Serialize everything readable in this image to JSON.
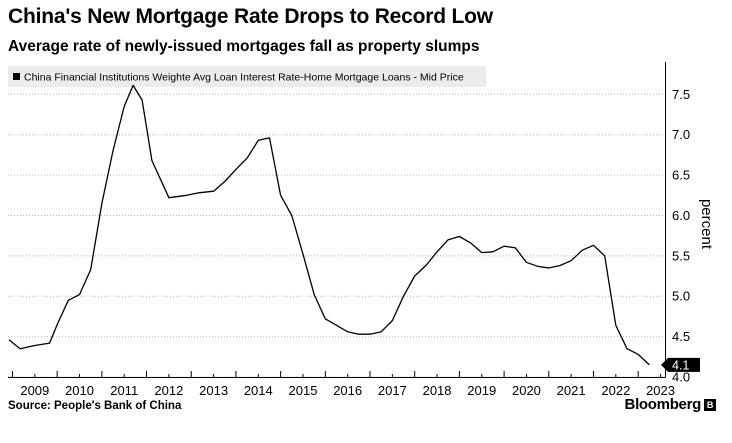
{
  "header": {
    "title": "China's New Mortgage Rate Drops to Record Low",
    "subtitle": "Average rate of newly-issued mortgages fall as property slumps"
  },
  "footer": {
    "source": "Source: People's Bank of China",
    "brand": "Bloomberg",
    "brand_icon": "bloomberg-square-icon"
  },
  "colors": {
    "line": "#000000",
    "grid": "#b4b4b4",
    "legend_bg": "#ececec",
    "label_bg": "#000000"
  },
  "chart_data": {
    "type": "line",
    "title": "China's New Mortgage Rate Drops to Record Low",
    "subtitle": "Average rate of newly-issued mortgages fall as property slumps",
    "xlabel": "",
    "ylabel": "percent",
    "xlim": [
      2008.9,
      2023.6
    ],
    "ylim": [
      4.0,
      7.9
    ],
    "x_ticks": [
      "2009",
      "2010",
      "2011",
      "2012",
      "2013",
      "2014",
      "2015",
      "2016",
      "2017",
      "2018",
      "2019",
      "2020",
      "2021",
      "2022",
      "2023"
    ],
    "y_ticks": [
      "4.0",
      "4.5",
      "5.0",
      "5.5",
      "6.0",
      "6.5",
      "7.0",
      "7.5"
    ],
    "grid": true,
    "y_axis_side": "right",
    "legend_position": "top-left",
    "last_value_label": "4.1",
    "series": [
      {
        "name": "China Financial Institutions Weighte Avg Loan Interest Rate-Home Mortgage Loans - Mid Price",
        "x": [
          2008.92,
          2009.17,
          2009.5,
          2009.83,
          2010.0,
          2010.25,
          2010.5,
          2010.75,
          2011.0,
          2011.25,
          2011.5,
          2011.7,
          2011.9,
          2012.12,
          2012.5,
          2012.9,
          2013.17,
          2013.5,
          2013.75,
          2014.0,
          2014.25,
          2014.5,
          2014.75,
          2015.0,
          2015.25,
          2015.5,
          2015.75,
          2016.0,
          2016.25,
          2016.5,
          2016.75,
          2017.0,
          2017.25,
          2017.5,
          2017.75,
          2018.0,
          2018.25,
          2018.5,
          2018.75,
          2019.0,
          2019.25,
          2019.5,
          2019.75,
          2020.0,
          2020.25,
          2020.5,
          2020.75,
          2021.0,
          2021.25,
          2021.5,
          2021.75,
          2022.0,
          2022.25,
          2022.5,
          2022.75,
          2023.0,
          2023.25
        ],
        "values": [
          4.46,
          4.35,
          4.39,
          4.42,
          4.65,
          4.95,
          5.02,
          5.33,
          6.15,
          6.8,
          7.35,
          7.61,
          7.43,
          6.68,
          6.22,
          6.25,
          6.28,
          6.3,
          6.42,
          6.57,
          6.71,
          6.93,
          6.96,
          6.25,
          6.0,
          5.52,
          5.02,
          4.72,
          4.64,
          4.56,
          4.53,
          4.53,
          4.56,
          4.7,
          5.0,
          5.25,
          5.38,
          5.55,
          5.7,
          5.74,
          5.66,
          5.54,
          5.55,
          5.62,
          5.6,
          5.42,
          5.37,
          5.35,
          5.38,
          5.44,
          5.57,
          5.63,
          5.5,
          4.64,
          4.35,
          4.28,
          4.15
        ]
      }
    ]
  }
}
